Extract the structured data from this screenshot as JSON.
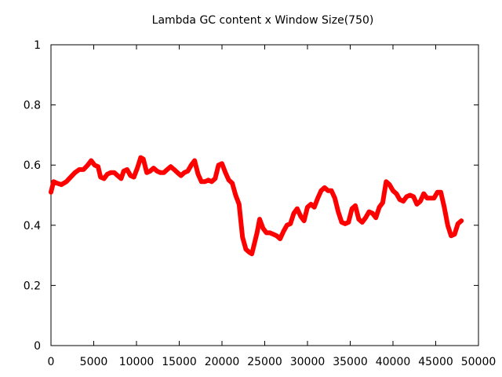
{
  "chart_data": {
    "type": "line",
    "title": "Lambda GC content x Window Size(750)",
    "xlabel": "",
    "ylabel": "",
    "xlim": [
      0,
      50000
    ],
    "ylim": [
      0,
      1
    ],
    "xticks": [
      0,
      5000,
      10000,
      15000,
      20000,
      25000,
      30000,
      35000,
      40000,
      45000,
      50000
    ],
    "yticks": [
      0,
      0.2,
      0.4,
      0.6,
      0.8,
      1
    ],
    "ytick_labels": [
      "0",
      "0.2",
      "0.4",
      "0.6",
      "0.8",
      "1"
    ],
    "grid": false,
    "series": [
      {
        "color": "#ff0000",
        "x": [
          0,
          300,
          700,
          1200,
          1800,
          2300,
          2800,
          3300,
          3800,
          4300,
          4700,
          5100,
          5500,
          5800,
          6200,
          6600,
          7000,
          7400,
          7800,
          8200,
          8500,
          8900,
          9300,
          9700,
          10100,
          10500,
          10800,
          11200,
          11600,
          12000,
          12400,
          12800,
          13200,
          13600,
          14000,
          14400,
          14800,
          15200,
          15600,
          16000,
          16400,
          16800,
          17200,
          17600,
          18000,
          18400,
          18800,
          19200,
          19600,
          20000,
          20400,
          20800,
          21200,
          21600,
          22000,
          22400,
          22800,
          23200,
          23500,
          23800,
          24100,
          24400,
          24800,
          25200,
          25600,
          26000,
          26400,
          26800,
          27200,
          27600,
          28000,
          28400,
          28800,
          29200,
          29600,
          30000,
          30400,
          30800,
          31200,
          31600,
          32000,
          32400,
          32800,
          33200,
          33600,
          34000,
          34400,
          34800,
          35200,
          35600,
          36000,
          36400,
          36800,
          37200,
          37600,
          38000,
          38400,
          38800,
          39200,
          39600,
          40000,
          40400,
          40800,
          41200,
          41600,
          42000,
          42400,
          42800,
          43200,
          43600,
          44000,
          44400,
          44800,
          45200,
          45600,
          46000,
          46400,
          46800,
          47200,
          47600,
          48000
        ],
        "y": [
          0.51,
          0.545,
          0.54,
          0.535,
          0.545,
          0.56,
          0.575,
          0.585,
          0.585,
          0.6,
          0.615,
          0.6,
          0.595,
          0.56,
          0.555,
          0.57,
          0.575,
          0.575,
          0.565,
          0.555,
          0.58,
          0.585,
          0.565,
          0.56,
          0.59,
          0.625,
          0.62,
          0.575,
          0.58,
          0.59,
          0.58,
          0.575,
          0.575,
          0.585,
          0.595,
          0.585,
          0.575,
          0.565,
          0.575,
          0.58,
          0.6,
          0.615,
          0.57,
          0.545,
          0.545,
          0.55,
          0.545,
          0.555,
          0.6,
          0.605,
          0.575,
          0.55,
          0.54,
          0.5,
          0.47,
          0.36,
          0.32,
          0.31,
          0.305,
          0.34,
          0.375,
          0.42,
          0.39,
          0.375,
          0.375,
          0.37,
          0.365,
          0.355,
          0.38,
          0.4,
          0.405,
          0.44,
          0.455,
          0.43,
          0.415,
          0.46,
          0.47,
          0.46,
          0.49,
          0.515,
          0.525,
          0.515,
          0.515,
          0.49,
          0.445,
          0.41,
          0.405,
          0.41,
          0.455,
          0.465,
          0.42,
          0.41,
          0.425,
          0.445,
          0.44,
          0.425,
          0.46,
          0.475,
          0.545,
          0.535,
          0.515,
          0.505,
          0.485,
          0.48,
          0.495,
          0.5,
          0.495,
          0.47,
          0.48,
          0.505,
          0.49,
          0.49,
          0.49,
          0.51,
          0.51,
          0.46,
          0.4,
          0.365,
          0.37,
          0.405,
          0.415
        ]
      }
    ]
  }
}
